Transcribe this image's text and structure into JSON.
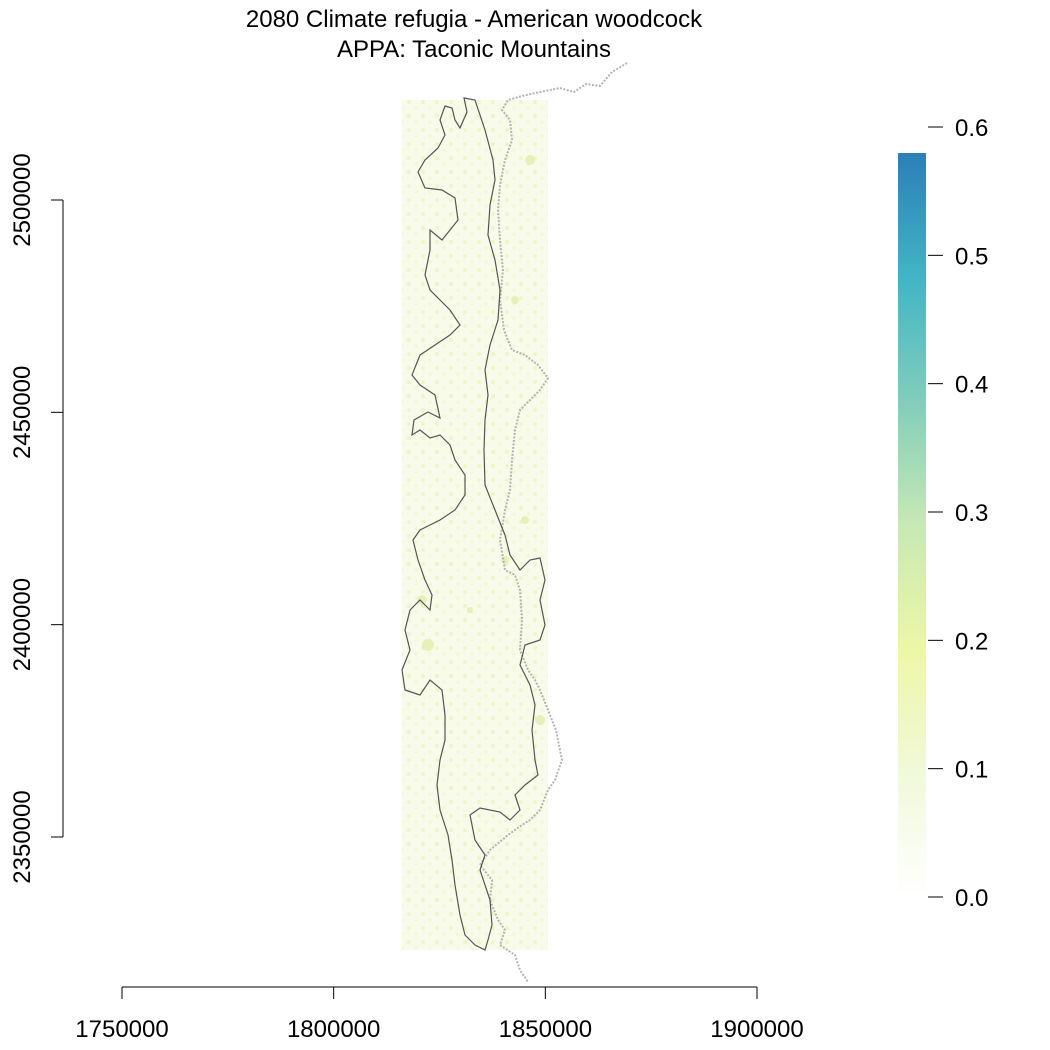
{
  "title": "2080 Climate refugia - American woodcock",
  "subtitle": "APPA: Taconic Mountains",
  "x_axis": {
    "ticks": [
      {
        "value": 1750000,
        "label": "1750000"
      },
      {
        "value": 1800000,
        "label": "1800000"
      },
      {
        "value": 1850000,
        "label": "1850000"
      },
      {
        "value": 1900000,
        "label": "1900000"
      }
    ],
    "range": [
      1750000,
      1900000
    ]
  },
  "y_axis": {
    "ticks": [
      {
        "value": 2350000,
        "label": "2350000"
      },
      {
        "value": 2400000,
        "label": "2400000"
      },
      {
        "value": 2450000,
        "label": "2450000"
      },
      {
        "value": 2500000,
        "label": "2500000"
      }
    ],
    "range": [
      2350000,
      2500000
    ]
  },
  "legend": {
    "ticks": [
      {
        "value": 0.0,
        "label": "0.0"
      },
      {
        "value": 0.1,
        "label": "0.1"
      },
      {
        "value": 0.2,
        "label": "0.2"
      },
      {
        "value": 0.3,
        "label": "0.3"
      },
      {
        "value": 0.4,
        "label": "0.4"
      },
      {
        "value": 0.5,
        "label": "0.5"
      },
      {
        "value": 0.6,
        "label": "0.6"
      }
    ],
    "range": [
      0.0,
      0.6
    ],
    "colors": [
      "#ffffff",
      "#f0f9d8",
      "#eef7a6",
      "#c7e9b4",
      "#7fcdbb",
      "#41b6c4",
      "#2c7fb8"
    ]
  },
  "colors": {
    "boundary": "#555555",
    "state_line": "#b3b3b3",
    "raster_light": "#f7fbe8",
    "raster_spot": "#e4f2b0"
  }
}
